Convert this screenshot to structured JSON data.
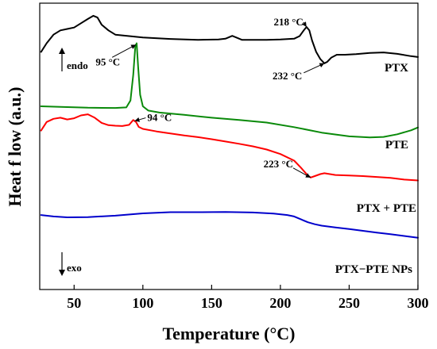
{
  "chart_data": {
    "type": "line",
    "xlabel": "Temperature (°C)",
    "ylabel": "Heat f low (a.u.)",
    "xlim": [
      25,
      300
    ],
    "xticks": [
      50,
      100,
      150,
      200,
      250,
      300
    ],
    "y_ticks_shown": false,
    "grid": false,
    "legend": "none",
    "directions": {
      "up": "endo",
      "down": "exo"
    },
    "series": [
      {
        "name": "PTX",
        "color": "#000000",
        "points": [
          [
            26,
            0.83
          ],
          [
            30,
            0.86
          ],
          [
            35,
            0.89
          ],
          [
            40,
            0.905
          ],
          [
            45,
            0.91
          ],
          [
            50,
            0.915
          ],
          [
            55,
            0.93
          ],
          [
            60,
            0.945
          ],
          [
            64,
            0.956
          ],
          [
            67,
            0.95
          ],
          [
            70,
            0.925
          ],
          [
            75,
            0.905
          ],
          [
            80,
            0.89
          ],
          [
            90,
            0.885
          ],
          [
            100,
            0.88
          ],
          [
            120,
            0.875
          ],
          [
            140,
            0.872
          ],
          [
            155,
            0.873
          ],
          [
            160,
            0.876
          ],
          [
            165,
            0.886
          ],
          [
            168,
            0.88
          ],
          [
            172,
            0.872
          ],
          [
            190,
            0.872
          ],
          [
            200,
            0.873
          ],
          [
            210,
            0.876
          ],
          [
            214,
            0.885
          ],
          [
            217,
            0.905
          ],
          [
            219,
            0.917
          ],
          [
            221,
            0.905
          ],
          [
            223,
            0.87
          ],
          [
            226,
            0.83
          ],
          [
            229,
            0.805
          ],
          [
            232,
            0.79
          ],
          [
            234,
            0.795
          ],
          [
            237,
            0.81
          ],
          [
            241,
            0.82
          ],
          [
            247,
            0.82
          ],
          [
            255,
            0.822
          ],
          [
            265,
            0.826
          ],
          [
            275,
            0.828
          ],
          [
            285,
            0.823
          ],
          [
            295,
            0.815
          ],
          [
            300,
            0.812
          ]
        ]
      },
      {
        "name": "PTE",
        "color": "#0a8a0a",
        "points": [
          [
            26,
            0.64
          ],
          [
            40,
            0.638
          ],
          [
            60,
            0.635
          ],
          [
            80,
            0.634
          ],
          [
            88,
            0.636
          ],
          [
            91,
            0.66
          ],
          [
            93,
            0.75
          ],
          [
            94.5,
            0.85
          ],
          [
            95.5,
            0.86
          ],
          [
            96.5,
            0.78
          ],
          [
            98,
            0.68
          ],
          [
            100,
            0.64
          ],
          [
            104,
            0.625
          ],
          [
            112,
            0.618
          ],
          [
            130,
            0.61
          ],
          [
            150,
            0.6
          ],
          [
            170,
            0.592
          ],
          [
            190,
            0.583
          ],
          [
            210,
            0.567
          ],
          [
            230,
            0.548
          ],
          [
            250,
            0.535
          ],
          [
            265,
            0.531
          ],
          [
            275,
            0.533
          ],
          [
            285,
            0.542
          ],
          [
            295,
            0.556
          ],
          [
            300,
            0.566
          ]
        ]
      },
      {
        "name": "PTX + PTE",
        "color": "#ff0000",
        "points": [
          [
            26,
            0.555
          ],
          [
            30,
            0.585
          ],
          [
            35,
            0.596
          ],
          [
            40,
            0.6
          ],
          [
            45,
            0.594
          ],
          [
            50,
            0.598
          ],
          [
            55,
            0.608
          ],
          [
            60,
            0.612
          ],
          [
            65,
            0.6
          ],
          [
            70,
            0.582
          ],
          [
            75,
            0.574
          ],
          [
            80,
            0.572
          ],
          [
            85,
            0.571
          ],
          [
            90,
            0.575
          ],
          [
            93,
            0.592
          ],
          [
            95,
            0.585
          ],
          [
            97,
            0.568
          ],
          [
            100,
            0.561
          ],
          [
            110,
            0.552
          ],
          [
            120,
            0.545
          ],
          [
            130,
            0.538
          ],
          [
            140,
            0.532
          ],
          [
            150,
            0.525
          ],
          [
            160,
            0.517
          ],
          [
            170,
            0.509
          ],
          [
            180,
            0.5
          ],
          [
            190,
            0.489
          ],
          [
            200,
            0.473
          ],
          [
            210,
            0.45
          ],
          [
            215,
            0.425
          ],
          [
            220,
            0.398
          ],
          [
            222,
            0.391
          ],
          [
            225,
            0.396
          ],
          [
            229,
            0.403
          ],
          [
            232,
            0.406
          ],
          [
            236,
            0.403
          ],
          [
            240,
            0.4
          ],
          [
            250,
            0.398
          ],
          [
            260,
            0.396
          ],
          [
            270,
            0.393
          ],
          [
            280,
            0.39
          ],
          [
            290,
            0.384
          ],
          [
            300,
            0.381
          ]
        ]
      },
      {
        "name": "PTX−PTE NPs",
        "color": "#0000cc",
        "points": [
          [
            26,
            0.26
          ],
          [
            35,
            0.255
          ],
          [
            45,
            0.252
          ],
          [
            60,
            0.253
          ],
          [
            80,
            0.258
          ],
          [
            100,
            0.266
          ],
          [
            120,
            0.27
          ],
          [
            140,
            0.27
          ],
          [
            160,
            0.271
          ],
          [
            180,
            0.269
          ],
          [
            195,
            0.265
          ],
          [
            205,
            0.26
          ],
          [
            210,
            0.255
          ],
          [
            215,
            0.245
          ],
          [
            220,
            0.235
          ],
          [
            225,
            0.228
          ],
          [
            230,
            0.223
          ],
          [
            240,
            0.217
          ],
          [
            250,
            0.211
          ],
          [
            260,
            0.205
          ],
          [
            270,
            0.199
          ],
          [
            280,
            0.193
          ],
          [
            290,
            0.187
          ],
          [
            300,
            0.181
          ]
        ]
      }
    ],
    "annotations": [
      {
        "text": "218 °C",
        "series": 0,
        "x": 219
      },
      {
        "text": "232 °C",
        "series": 0,
        "x": 232
      },
      {
        "text": "95 °C",
        "series": 1,
        "x": 95
      },
      {
        "text": "94 °C",
        "series": 2,
        "x": 94
      },
      {
        "text": "223 °C",
        "series": 2,
        "x": 222
      }
    ]
  }
}
